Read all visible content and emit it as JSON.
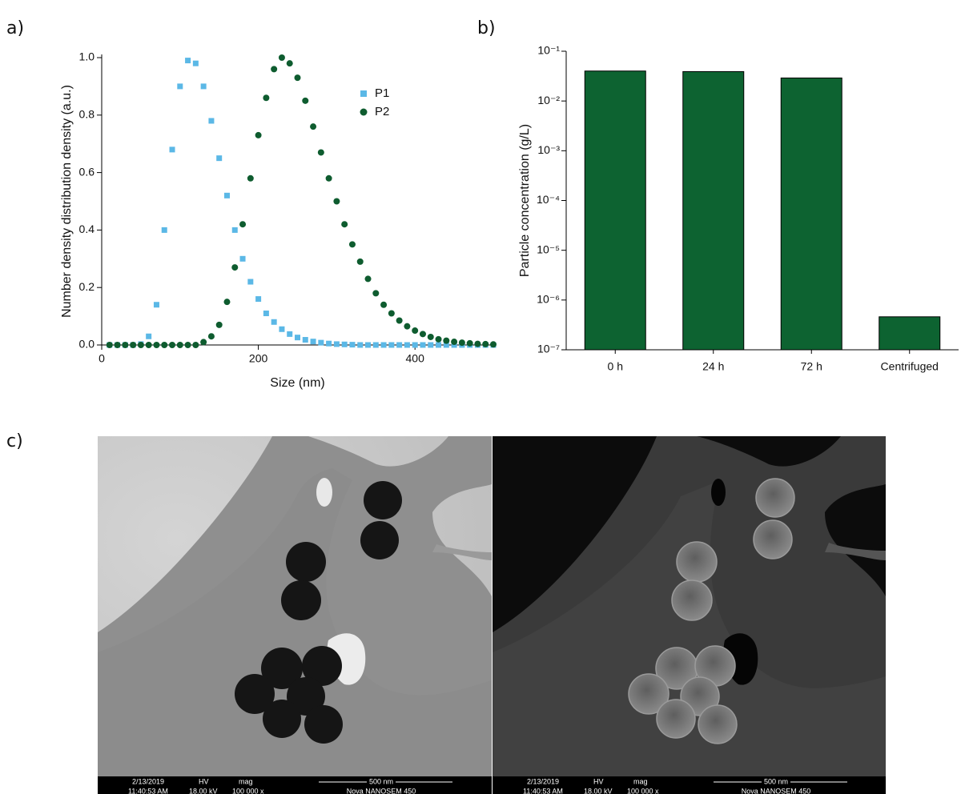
{
  "panels": [
    "a)",
    "b)",
    "c)"
  ],
  "chart_data": [
    {
      "type": "scatter",
      "x_label": "Size (nm)",
      "y_label": "Number density distribution density (a.u.)",
      "x": [
        10,
        20,
        30,
        40,
        50,
        60,
        70,
        80,
        90,
        100,
        110,
        120,
        130,
        140,
        150,
        160,
        170,
        180,
        190,
        200,
        210,
        220,
        230,
        240,
        250,
        260,
        270,
        280,
        290,
        300,
        310,
        320,
        330,
        340,
        350,
        360,
        370,
        380,
        390,
        400,
        410,
        420,
        430,
        440,
        450,
        460,
        470,
        480,
        490,
        500
      ],
      "series": [
        {
          "name": "P1",
          "color": "#5bb8e6",
          "marker": "square",
          "values": [
            0,
            0,
            0,
            0,
            0.003,
            0.03,
            0.14,
            0.4,
            0.68,
            0.9,
            0.99,
            0.98,
            0.9,
            0.78,
            0.65,
            0.52,
            0.4,
            0.3,
            0.22,
            0.16,
            0.11,
            0.08,
            0.055,
            0.038,
            0.026,
            0.018,
            0.012,
            0.008,
            0.005,
            0.003,
            0.002,
            0.001,
            0,
            0,
            0,
            0,
            0,
            0,
            0,
            0,
            0,
            0,
            0,
            0,
            0,
            0,
            0,
            0,
            0,
            0
          ]
        },
        {
          "name": "P2",
          "color": "#0e5c2f",
          "marker": "circle",
          "values": [
            0,
            0,
            0,
            0,
            0,
            0,
            0,
            0,
            0,
            0,
            0,
            0,
            0.01,
            0.03,
            0.07,
            0.15,
            0.27,
            0.42,
            0.58,
            0.73,
            0.86,
            0.96,
            1.0,
            0.98,
            0.93,
            0.85,
            0.76,
            0.67,
            0.58,
            0.5,
            0.42,
            0.35,
            0.29,
            0.23,
            0.18,
            0.14,
            0.11,
            0.085,
            0.065,
            0.05,
            0.038,
            0.028,
            0.02,
            0.015,
            0.011,
            0.008,
            0.006,
            0.004,
            0.003,
            0.002
          ]
        }
      ],
      "xlim": [
        0,
        500
      ],
      "xticks": [
        0,
        200,
        400
      ],
      "ylim": [
        0,
        1
      ],
      "yticks": [
        {
          "value": 0,
          "label": "0.0"
        },
        0.2,
        0.4,
        0.6,
        0.8,
        {
          "value": 1,
          "label": "1.0"
        }
      ],
      "legend": "upper-right"
    },
    {
      "type": "bar",
      "y_label": "Particle concentration (g/L)",
      "categories": [
        "0 h",
        "24 h",
        "72 h",
        "Centrifuged"
      ],
      "values": [
        0.04,
        0.039,
        0.029,
        4.6e-07
      ],
      "color": "#0d6331",
      "yscale": "log",
      "ylim": [
        1e-07,
        0.1
      ],
      "yticks": [
        {
          "value": 1e-07,
          "label": "10⁻⁷"
        },
        {
          "value": 1e-06,
          "label": "10⁻⁶"
        },
        {
          "value": 1e-05,
          "label": "10⁻⁵"
        },
        {
          "value": 0.0001,
          "label": "10⁻⁴"
        },
        {
          "value": 0.001,
          "label": "10⁻³"
        },
        {
          "value": 0.01,
          "label": "10⁻²"
        },
        {
          "value": 0.1,
          "label": "10⁻¹"
        }
      ]
    }
  ],
  "sem_info": {
    "date": "2/13/2019",
    "time": "11:40:53 AM",
    "hv_label": "HV",
    "hv": "18.00 kV",
    "mag_label": "mag",
    "mag": "100 000 x",
    "scale": "500 nm",
    "instrument": "Nova NANOSEM 450"
  }
}
